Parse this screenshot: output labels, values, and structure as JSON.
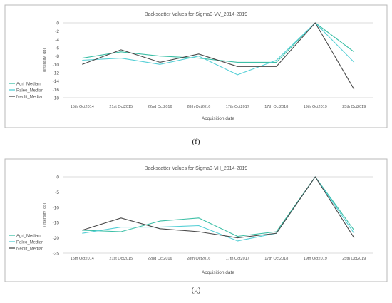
{
  "labels": {
    "f": "(f)",
    "g": "(g)"
  },
  "chart_data": [
    {
      "type": "line",
      "title": "Backscatter Values for Sigma0-VV_2014-2019",
      "xlabel": "Acquisition date",
      "ylabel": "Intensity_db",
      "ylim": [
        -18,
        0
      ],
      "yticks": [
        0,
        -2,
        -4,
        -6,
        -8,
        -10,
        -12,
        -14,
        -16,
        -18
      ],
      "grid": false,
      "legend": "left",
      "categories": [
        "15th Oct2014",
        "21st Oct2015",
        "22nd Oct2016",
        "28th Oct2016",
        "17th Oct2017",
        "17th Oct2018",
        "19th Oct2019",
        "25th Oct2019"
      ],
      "series": [
        {
          "name": "Agri_Median",
          "color": "#3cbfa6",
          "values": [
            -8.5,
            -7.0,
            -8.0,
            -8.5,
            -9.5,
            -9.5,
            0,
            -7.0
          ]
        },
        {
          "name": "Paleo_Median",
          "color": "#55cfd6",
          "values": [
            -9.0,
            -8.5,
            -10.0,
            -8.0,
            -12.5,
            -9.0,
            0,
            -9.5
          ]
        },
        {
          "name": "Neolit_Median",
          "color": "#4a4a4a",
          "values": [
            -10.0,
            -6.5,
            -9.5,
            -7.5,
            -10.5,
            -10.5,
            0,
            -16.0
          ]
        }
      ]
    },
    {
      "type": "line",
      "title": "Backscatter Values for Sigma0-VH_2014-2019",
      "xlabel": "Acquisition date",
      "ylabel": "Intensity_db",
      "ylim": [
        -25,
        0
      ],
      "yticks": [
        0,
        -5,
        -10,
        -15,
        -20,
        -25
      ],
      "grid": false,
      "legend": "left",
      "categories": [
        "15th Oct2014",
        "21st Oct2015",
        "22nd Oct2016",
        "28th Oct2016",
        "17th Oct2017",
        "17th Oct2018",
        "19th Oct2019",
        "25th Oct2019"
      ],
      "series": [
        {
          "name": "Agri_Median",
          "color": "#3cbfa6",
          "values": [
            -17.5,
            -18.0,
            -14.5,
            -13.5,
            -19.5,
            -18.0,
            0,
            -17.5
          ]
        },
        {
          "name": "Paleo_Median",
          "color": "#55cfd6",
          "values": [
            -18.5,
            -16.5,
            -16.5,
            -16.0,
            -21.0,
            -18.5,
            0,
            -18.5
          ]
        },
        {
          "name": "Neolit_Median",
          "color": "#4a4a4a",
          "values": [
            -17.5,
            -13.5,
            -17.0,
            -18.0,
            -20.0,
            -18.5,
            0,
            -20.0
          ]
        }
      ]
    }
  ]
}
